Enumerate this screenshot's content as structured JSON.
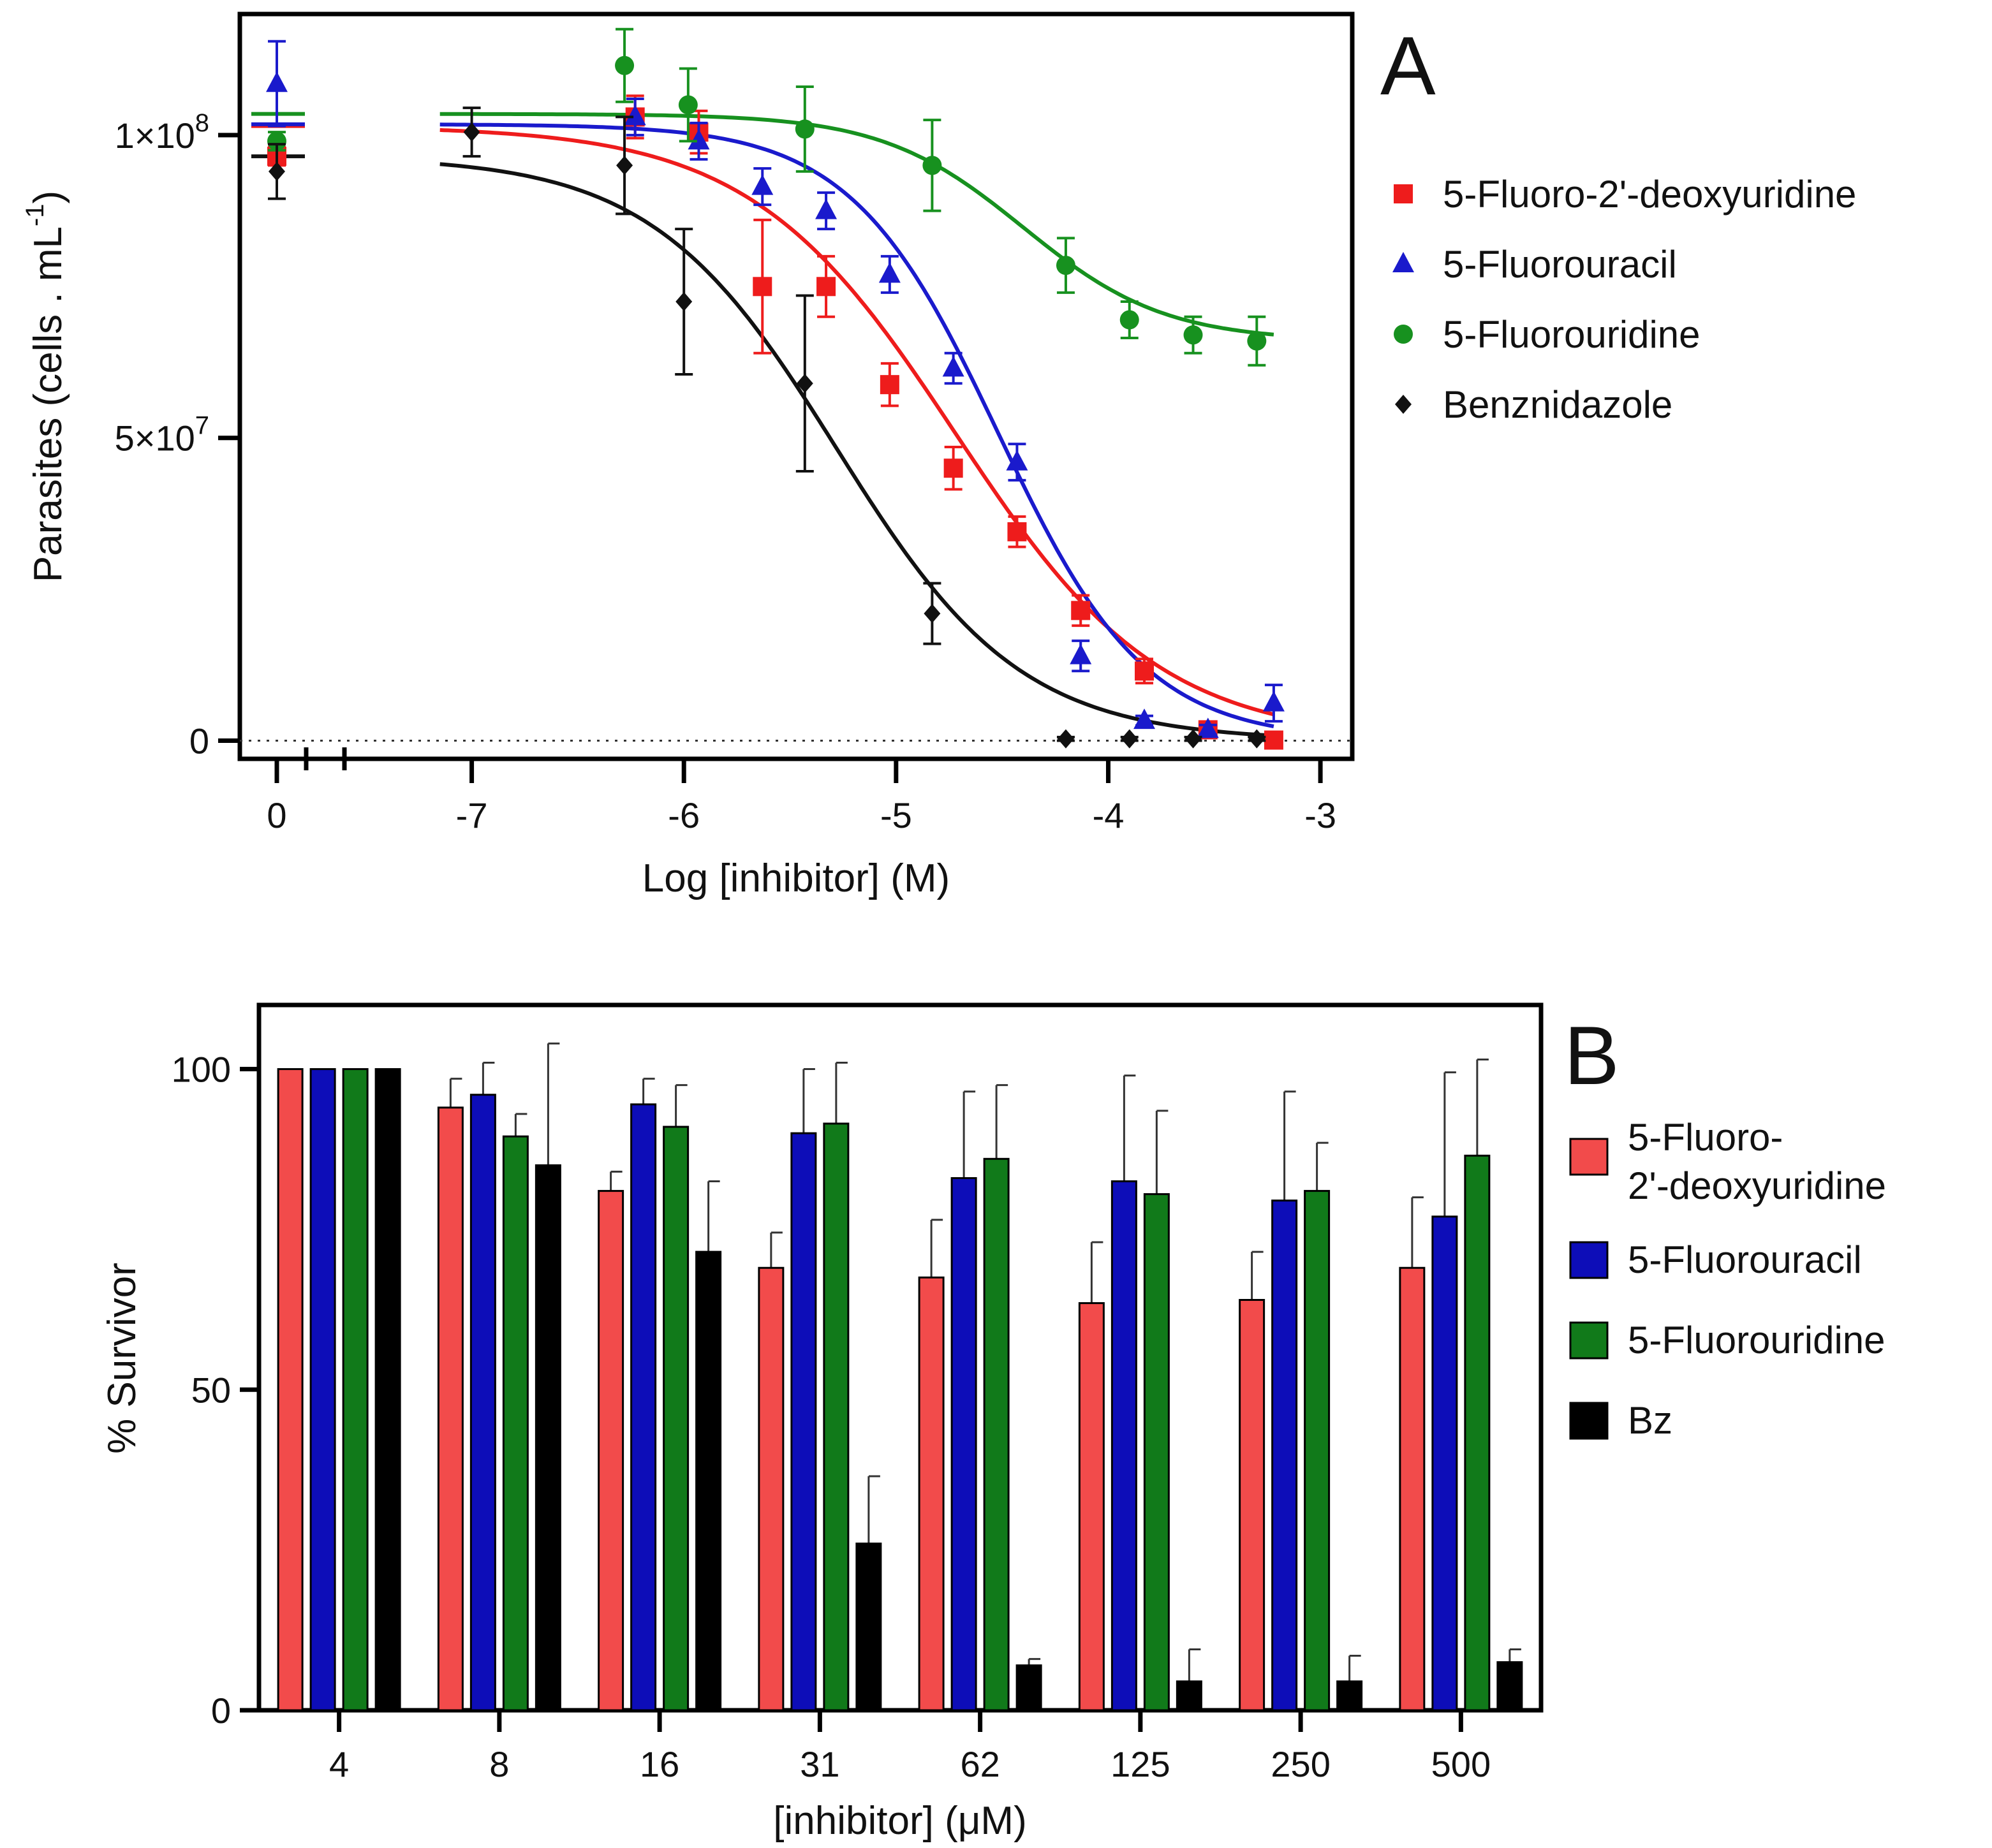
{
  "chart_data": [
    {
      "panel": "A",
      "type": "scatter",
      "panel_label": "A",
      "xlabel": "Log [inhibitor] (M)",
      "ylabel": "Parasites (cells . mL",
      "ylabel_sup": "-1",
      "xlim": [
        -7.6,
        -2.85
      ],
      "ylim": [
        -3000000,
        120000000
      ],
      "x_ticks": [
        {
          "value": -7,
          "label": "-7"
        },
        {
          "value": -6,
          "label": "-6"
        },
        {
          "value": -5,
          "label": "-5"
        },
        {
          "value": -4,
          "label": "-4"
        },
        {
          "value": -3,
          "label": "-3"
        }
      ],
      "zero_tick_label": "0",
      "y_ticks": [
        {
          "value": 0,
          "label": "0",
          "sup": ""
        },
        {
          "value": 50000000,
          "label": "5×10",
          "sup": "7"
        },
        {
          "value": 100000000,
          "label": "1×10",
          "sup": "8"
        }
      ],
      "reference_line": {
        "y": 0,
        "style": "dotted"
      },
      "series": [
        {
          "name": "5-Fluoro-2'-deoxyuridine",
          "color": "#ee1c1c",
          "marker": "square",
          "control": {
            "y": 96500000,
            "err": 1500000
          },
          "points": [
            {
              "x": -6.23,
              "y": 103000000,
              "err": 3500000
            },
            {
              "x": -5.93,
              "y": 100500000,
              "err": 3500000
            },
            {
              "x": -5.63,
              "y": 75000000,
              "err": 11000000
            },
            {
              "x": -5.33,
              "y": 75000000,
              "err": 5000000
            },
            {
              "x": -5.03,
              "y": 58800000,
              "err": 3500000
            },
            {
              "x": -4.73,
              "y": 45000000,
              "err": 3500000
            },
            {
              "x": -4.43,
              "y": 34500000,
              "err": 2500000
            },
            {
              "x": -4.13,
              "y": 21500000,
              "err": 2500000
            },
            {
              "x": -3.83,
              "y": 11500000,
              "err": 2000000
            },
            {
              "x": -3.53,
              "y": 1800000,
              "err": 800000
            },
            {
              "x": -3.22,
              "y": 100000,
              "err": 400000
            }
          ],
          "fit": {
            "top": 101500000,
            "bottom": 0,
            "log_ic50": -4.72,
            "hill": 0.9
          }
        },
        {
          "name": "5-Fluorouracil",
          "color": "#1a1acc",
          "marker": "triangle",
          "control": {
            "y": 108500000,
            "err": 7000000
          },
          "points": [
            {
              "x": -6.23,
              "y": 103000000,
              "err": 3000000
            },
            {
              "x": -5.93,
              "y": 99000000,
              "err": 3000000
            },
            {
              "x": -5.63,
              "y": 91500000,
              "err": 3000000
            },
            {
              "x": -5.33,
              "y": 87500000,
              "err": 3000000
            },
            {
              "x": -5.03,
              "y": 77000000,
              "err": 3000000
            },
            {
              "x": -4.73,
              "y": 61500000,
              "err": 2500000
            },
            {
              "x": -4.43,
              "y": 46000000,
              "err": 3000000
            },
            {
              "x": -4.13,
              "y": 14000000,
              "err": 2500000
            },
            {
              "x": -3.83,
              "y": 3300000,
              "err": 800000
            },
            {
              "x": -3.53,
              "y": 1800000,
              "err": 800000
            },
            {
              "x": -3.22,
              "y": 6200000,
              "err": 3000000
            }
          ],
          "fit": {
            "top": 101800000,
            "bottom": 0,
            "log_ic50": -4.52,
            "hill": 1.25
          }
        },
        {
          "name": "5-Fluorouridine",
          "color": "#17911f",
          "marker": "circle",
          "control": {
            "y": 99000000,
            "err": 1500000
          },
          "points": [
            {
              "x": -6.28,
              "y": 111500000,
              "err": 6000000
            },
            {
              "x": -5.98,
              "y": 105000000,
              "err": 6000000
            },
            {
              "x": -5.43,
              "y": 101000000,
              "err": 7000000
            },
            {
              "x": -4.83,
              "y": 95000000,
              "err": 7500000
            },
            {
              "x": -4.2,
              "y": 78500000,
              "err": 4500000
            },
            {
              "x": -3.9,
              "y": 69500000,
              "err": 3000000
            },
            {
              "x": -3.6,
              "y": 67000000,
              "err": 3000000
            },
            {
              "x": -3.3,
              "y": 66000000,
              "err": 4000000
            }
          ],
          "fit": {
            "top": 103500000,
            "bottom": 66000000,
            "log_ic50": -4.4,
            "hill": 1.3
          }
        },
        {
          "name": "Benznidazole",
          "color": "#111111",
          "marker": "diamond",
          "control": {
            "y": 94000000,
            "err": 4500000
          },
          "points": [
            {
              "x": -7.0,
              "y": 100500000,
              "err": 4000000
            },
            {
              "x": -6.28,
              "y": 95000000,
              "err": 8000000
            },
            {
              "x": -6.0,
              "y": 72500000,
              "err": 12000000
            },
            {
              "x": -5.43,
              "y": 59000000,
              "err": 14500000
            },
            {
              "x": -4.83,
              "y": 21000000,
              "err": 5000000
            },
            {
              "x": -4.2,
              "y": 300000,
              "err": 300000
            },
            {
              "x": -3.9,
              "y": 300000,
              "err": 300000
            },
            {
              "x": -3.6,
              "y": 300000,
              "err": 300000
            },
            {
              "x": -3.3,
              "y": 300000,
              "err": 300000
            }
          ],
          "fit": {
            "top": 96500000,
            "bottom": 0,
            "log_ic50": -5.28,
            "hill": 1.0
          }
        }
      ]
    },
    {
      "panel": "B",
      "type": "bar",
      "panel_label": "B",
      "xlabel": "[inhibitor] (μM)",
      "ylabel": "% Survivor",
      "ylim": [
        0,
        110
      ],
      "y_ticks": [
        {
          "value": 0,
          "label": "0"
        },
        {
          "value": 50,
          "label": "50"
        },
        {
          "value": 100,
          "label": "100"
        }
      ],
      "categories": [
        "4",
        "8",
        "16",
        "31",
        "62",
        "125",
        "250",
        "500"
      ],
      "series": [
        {
          "name": "5-Fluoro-2'-deoxyuridine",
          "legend_lines": [
            "5-Fluoro-",
            "2'-deoxyuridine"
          ],
          "color": "#f24b4b",
          "values": [
            100,
            94,
            81,
            69,
            67.5,
            63.5,
            64,
            69
          ],
          "errors": [
            0,
            4.5,
            3,
            5.5,
            9,
            9.5,
            7.5,
            11
          ]
        },
        {
          "name": "5-Fluorouracil",
          "legend_lines": [
            "5-Fluorouracil"
          ],
          "color": "#0d0db8",
          "values": [
            100,
            96,
            94.5,
            90,
            83,
            82.5,
            79.5,
            77
          ],
          "errors": [
            0,
            5,
            4,
            10,
            13.5,
            16.5,
            17,
            22.5
          ]
        },
        {
          "name": "5-Fluorouridine",
          "legend_lines": [
            "5-Fluorouridine"
          ],
          "color": "#117a1a",
          "values": [
            100,
            89.5,
            91,
            91.5,
            86,
            80.5,
            81,
            86.5
          ],
          "errors": [
            0,
            3.5,
            6.5,
            9.5,
            11.5,
            13,
            7.5,
            15
          ]
        },
        {
          "name": "Bz",
          "legend_lines": [
            "Bz"
          ],
          "color": "#000000",
          "values": [
            100,
            85,
            71.5,
            26,
            7,
            4.5,
            4.5,
            7.5
          ],
          "errors": [
            0,
            19,
            11,
            10.5,
            1,
            5,
            4,
            2
          ]
        }
      ]
    }
  ]
}
